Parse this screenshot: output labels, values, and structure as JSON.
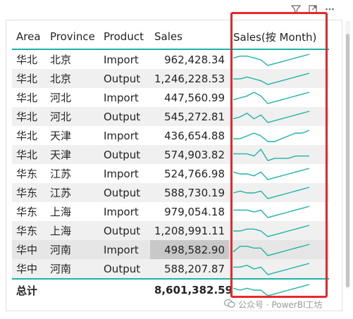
{
  "columns": {
    "area": "Area",
    "province": "Province",
    "product": "Product",
    "sales": "Sales",
    "sparkline": "Sales(按 Month)"
  },
  "rows": [
    {
      "area": "华北",
      "province": "北京",
      "product": "Import",
      "sales": "962,428.34",
      "trend": [
        7,
        8,
        8,
        7,
        6,
        3,
        4,
        5,
        6,
        7,
        8,
        9
      ]
    },
    {
      "area": "华北",
      "province": "北京",
      "product": "Output",
      "sales": "1,246,228.53",
      "trend": [
        6,
        6,
        7,
        6,
        5,
        3,
        4,
        5,
        6,
        7,
        8,
        9
      ]
    },
    {
      "area": "华北",
      "province": "河北",
      "product": "Import",
      "sales": "447,560.99",
      "trend": [
        5,
        6,
        7,
        9,
        7,
        3,
        4,
        5,
        6,
        7,
        8,
        9
      ]
    },
    {
      "area": "华北",
      "province": "河北",
      "product": "Output",
      "sales": "545,272.81",
      "trend": [
        5,
        6,
        8,
        5,
        7,
        3,
        4,
        5,
        6,
        7,
        8,
        9
      ]
    },
    {
      "area": "华北",
      "province": "天津",
      "product": "Import",
      "sales": "436,654.88",
      "trend": [
        6,
        6,
        7,
        8,
        7,
        5,
        5,
        6,
        7,
        8,
        8,
        9
      ]
    },
    {
      "area": "华北",
      "province": "天津",
      "product": "Output",
      "sales": "574,903.82",
      "trend": [
        6,
        6,
        6,
        5,
        8,
        3,
        4,
        4,
        4,
        5,
        5,
        5
      ]
    },
    {
      "area": "华东",
      "province": "江苏",
      "product": "Import",
      "sales": "524,766.98",
      "trend": [
        7,
        6,
        6,
        5,
        7,
        3,
        4,
        5,
        6,
        7,
        8,
        9
      ]
    },
    {
      "area": "华东",
      "province": "江苏",
      "product": "Output",
      "sales": "588,730.19",
      "trend": [
        6,
        7,
        6,
        6,
        7,
        3,
        4,
        5,
        6,
        7,
        8,
        9
      ]
    },
    {
      "area": "华东",
      "province": "上海",
      "product": "Import",
      "sales": "979,054.18",
      "trend": [
        7,
        7,
        7,
        6,
        7,
        3,
        4,
        5,
        6,
        7,
        8,
        9
      ]
    },
    {
      "area": "华东",
      "province": "上海",
      "product": "Output",
      "sales": "1,208,991.11",
      "trend": [
        6,
        6,
        7,
        7,
        6,
        3,
        4,
        5,
        6,
        7,
        8,
        9
      ]
    },
    {
      "area": "华中",
      "province": "河南",
      "product": "Import",
      "sales": "498,582.90",
      "trend": [
        5,
        8,
        8,
        7,
        7,
        3,
        4,
        5,
        6,
        7,
        8,
        9
      ]
    },
    {
      "area": "华中",
      "province": "河南",
      "product": "Output",
      "sales": "588,207.87",
      "trend": [
        7,
        7,
        8,
        6,
        7,
        3,
        4,
        5,
        6,
        7,
        8,
        9
      ]
    }
  ],
  "total": {
    "label": "总计",
    "sales": "8,601,382.59",
    "trend": [
      7,
      6,
      7,
      6,
      6,
      3,
      4,
      5,
      6,
      7,
      8,
      9
    ]
  },
  "watermark": "公众号 · PowerBI工坊",
  "colors": {
    "accent": "#1fb3a8",
    "highlight_box": "#e8282b"
  },
  "icons": [
    "filter-icon",
    "focus-mode-icon",
    "more-options-icon",
    "wechat-icon"
  ]
}
